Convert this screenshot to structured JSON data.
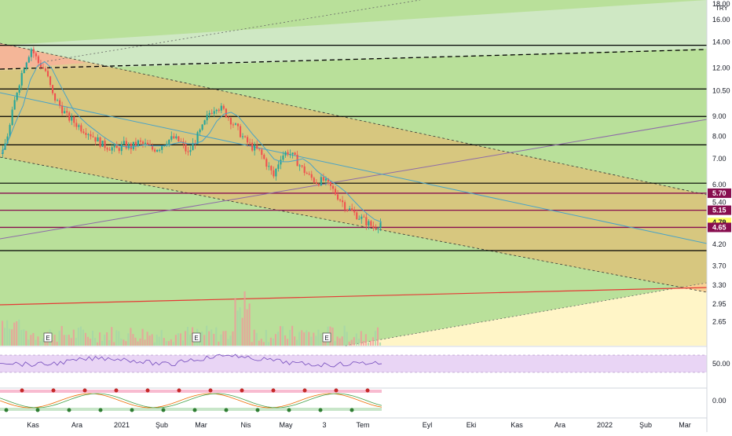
{
  "chart_data": {
    "type": "candlestick",
    "currency": "TRY",
    "y_scale": "log",
    "price_ylim": [
      2.3,
      18.0
    ],
    "y_ticks": [
      "18.00",
      "16.00",
      "14.00",
      "12.00",
      "10.50",
      "9.00",
      "8.00",
      "7.00",
      "6.00",
      "5.40",
      "4.79",
      "4.20",
      "3.70",
      "3.30",
      "2.95",
      "2.65"
    ],
    "x_ticks": [
      "Kas",
      "Ara",
      "2021",
      "Şub",
      "Mar",
      "Nis",
      "May",
      "3",
      "Tem",
      "Eyl",
      "Eki",
      "Kas",
      "Ara",
      "2022",
      "Şub",
      "Mar"
    ],
    "price_badges": [
      {
        "value": "5.70",
        "color": "#880e4f",
        "text_color": "#ffffff"
      },
      {
        "value": "5.15",
        "color": "#880e4f",
        "text_color": "#ffffff"
      },
      {
        "value": "4.79",
        "color": "#ffff66",
        "text_color": "#131722"
      },
      {
        "value": "4.65",
        "color": "#880e4f",
        "text_color": "#ffffff"
      }
    ],
    "horizontal_levels": [
      13.75,
      10.6,
      9.0,
      7.6,
      6.05,
      5.7,
      5.15,
      4.65,
      4.05
    ],
    "close_series_approx": [
      7.2,
      8.5,
      10.5,
      12.2,
      13.5,
      12.4,
      11.8,
      10.2,
      9.6,
      9.0,
      8.7,
      8.4,
      8.2,
      7.9,
      7.6,
      7.5,
      7.4,
      7.6,
      7.5,
      7.7,
      7.6,
      7.4,
      7.5,
      7.8,
      7.9,
      7.7,
      7.2,
      7.8,
      8.4,
      9.2,
      9.6,
      9.3,
      8.8,
      8.3,
      7.8,
      7.5,
      7.3,
      6.8,
      6.3,
      7.1,
      7.3,
      7.0,
      6.6,
      6.3,
      6.1,
      6.15,
      5.9,
      5.6,
      5.3,
      5.1,
      4.95,
      4.8,
      4.65,
      4.79
    ],
    "oscillator_ticks": [
      "50.00",
      "0.00"
    ],
    "earnings_markers": [
      "E",
      "E",
      "E"
    ],
    "colors": {
      "up": "#26a69a",
      "down": "#ef5350",
      "channel_fill": "#f0b26a",
      "green_zone": "#b9e09a",
      "upper_green": "#cfe8c4",
      "pink_zone": "#f8bbd0",
      "yellow_zone": "#fff5c7",
      "ma_line": "#4aa3c7",
      "purple_line": "#8e6ba8",
      "red_line": "#e53935"
    }
  }
}
